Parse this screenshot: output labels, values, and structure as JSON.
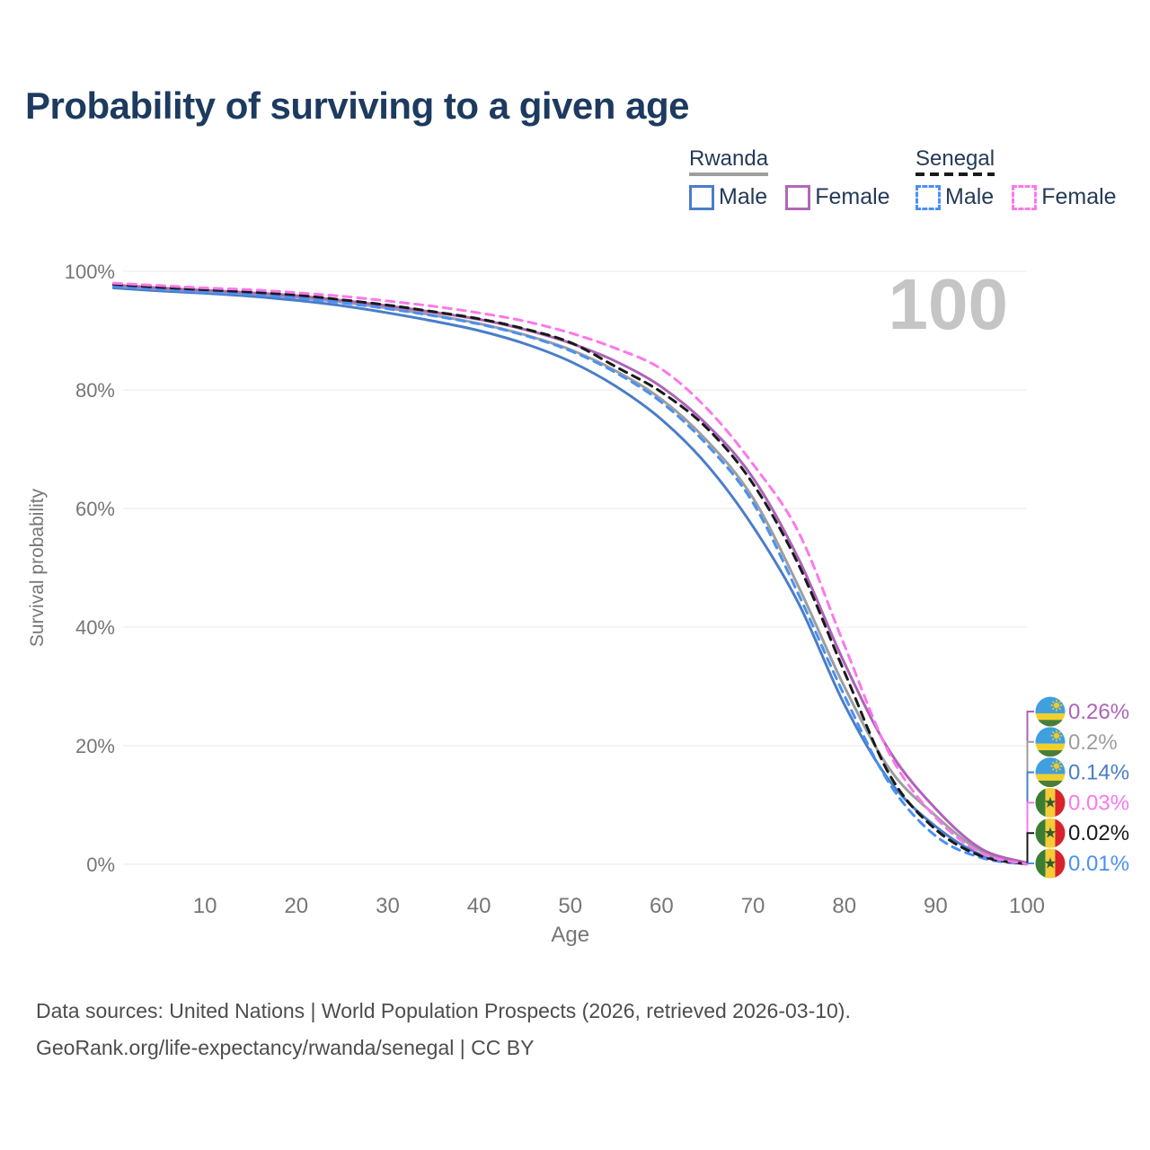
{
  "title": "Probability of surviving to a given age",
  "watermark_age": "100",
  "legend": {
    "groups": [
      {
        "name": "Rwanda",
        "underline_style": "solid",
        "underline_color": "#9e9e9e",
        "items": [
          {
            "label": "Male",
            "color": "#4a7dc9",
            "dashed": false
          },
          {
            "label": "Female",
            "color": "#b069b8",
            "dashed": false
          }
        ]
      },
      {
        "name": "Senegal",
        "underline_style": "dashed",
        "underline_color": "#1a1a1a",
        "items": [
          {
            "label": "Male",
            "color": "#4a90f5",
            "dashed": true
          },
          {
            "label": "Female",
            "color": "#fb78ea",
            "dashed": true
          }
        ]
      }
    ]
  },
  "chart_data": {
    "type": "line",
    "title": "Probability of surviving to a given age",
    "xlabel": "Age",
    "ylabel": "Survival probability",
    "xlim": [
      0,
      100
    ],
    "ylim": [
      0,
      100
    ],
    "grid": "horizontal",
    "x_tick_labels": [
      "10",
      "20",
      "30",
      "40",
      "50",
      "60",
      "70",
      "80",
      "90",
      "100"
    ],
    "x_tick_values": [
      10,
      20,
      30,
      40,
      50,
      60,
      70,
      80,
      90,
      100
    ],
    "y_tick_labels": [
      "0%",
      "20%",
      "40%",
      "60%",
      "80%",
      "100%"
    ],
    "y_tick_values": [
      0,
      20,
      40,
      60,
      80,
      100
    ],
    "x": [
      0,
      5,
      10,
      15,
      20,
      25,
      30,
      35,
      40,
      45,
      50,
      55,
      60,
      65,
      70,
      75,
      80,
      85,
      90,
      95,
      100
    ],
    "series": [
      {
        "name": "Rwanda Male",
        "country": "Rwanda",
        "sex": "Male",
        "color": "#4a7dc9",
        "dashed": false,
        "values": [
          97.2,
          96.7,
          96.3,
          95.8,
          95.1,
          94.2,
          93.0,
          91.6,
          90.0,
          87.8,
          84.8,
          80.6,
          75.0,
          67.3,
          57.0,
          44.0,
          27.0,
          14.0,
          6.4,
          1.6,
          0.14
        ]
      },
      {
        "name": "Rwanda Both sexes",
        "country": "Rwanda",
        "sex": "Both",
        "color": "#9e9e9e",
        "dashed": false,
        "values": [
          97.5,
          97.0,
          96.6,
          96.2,
          95.6,
          94.8,
          93.8,
          92.6,
          91.2,
          89.3,
          86.8,
          83.2,
          78.4,
          71.4,
          61.8,
          46.8,
          30.0,
          16.0,
          8.2,
          2.2,
          0.2
        ]
      },
      {
        "name": "Rwanda Female",
        "country": "Rwanda",
        "sex": "Female",
        "color": "#ad63b8",
        "dashed": false,
        "values": [
          97.7,
          97.2,
          96.8,
          96.4,
          95.9,
          95.1,
          94.2,
          93.1,
          91.9,
          90.2,
          87.9,
          84.8,
          80.5,
          74.1,
          65.2,
          51.5,
          34.0,
          19.0,
          9.4,
          2.6,
          0.26
        ]
      },
      {
        "name": "Senegal Male",
        "country": "Senegal",
        "sex": "Male",
        "color": "#4a90f5",
        "dashed": true,
        "values": [
          97.5,
          97.0,
          96.5,
          96.1,
          95.5,
          94.7,
          93.7,
          92.5,
          91.1,
          89.2,
          86.6,
          82.9,
          77.9,
          70.7,
          61.0,
          45.5,
          28.5,
          13.5,
          4.8,
          1.1,
          0.01
        ]
      },
      {
        "name": "Senegal Both sexes",
        "country": "Senegal",
        "sex": "Both",
        "color": "#1a1a1a",
        "dashed": true,
        "values": [
          97.8,
          97.3,
          96.9,
          96.5,
          96.0,
          95.2,
          94.3,
          93.2,
          92.0,
          90.3,
          88.0,
          83.9,
          79.6,
          73.5,
          64.2,
          50.5,
          32.5,
          15.0,
          5.9,
          1.4,
          0.02
        ]
      },
      {
        "name": "Senegal Female",
        "country": "Senegal",
        "sex": "Female",
        "color": "#fb78ea",
        "dashed": true,
        "values": [
          98.0,
          97.6,
          97.2,
          96.9,
          96.4,
          95.8,
          95.0,
          94.1,
          93.0,
          91.6,
          89.6,
          87.0,
          83.5,
          76.8,
          67.5,
          56.0,
          37.0,
          18.5,
          7.9,
          1.9,
          0.03
        ]
      }
    ],
    "end_labels": [
      {
        "series": "Rwanda Female",
        "value": "0.26%",
        "color": "#ad63b8",
        "flag": "rwanda"
      },
      {
        "series": "Rwanda Both sexes",
        "value": "0.2%",
        "color": "#9e9e9e",
        "flag": "rwanda"
      },
      {
        "series": "Rwanda Male",
        "value": "0.14%",
        "color": "#4a7dc9",
        "flag": "rwanda"
      },
      {
        "series": "Senegal Female",
        "value": "0.03%",
        "color": "#fb78ea",
        "flag": "senegal"
      },
      {
        "series": "Senegal Both sexes",
        "value": "0.02%",
        "color": "#1a1a1a",
        "flag": "senegal"
      },
      {
        "series": "Senegal Male",
        "value": "0.01%",
        "color": "#4a90f5",
        "flag": "senegal"
      }
    ],
    "flag_colors": {
      "rwanda": {
        "blue": "#3f9fdf",
        "yellow": "#f2d02c",
        "green": "#4a7d38",
        "sun": "#f0c928"
      },
      "senegal": {
        "green": "#3c7d34",
        "yellow": "#f4cb38",
        "red": "#d8232a",
        "star": "#2f6030"
      }
    }
  },
  "footer": {
    "line1": "Data sources: United Nations | World Population Prospects (2026, retrieved 2026-03-10).",
    "line2": "GeoRank.org/life-expectancy/rwanda/senegal | CC BY"
  }
}
